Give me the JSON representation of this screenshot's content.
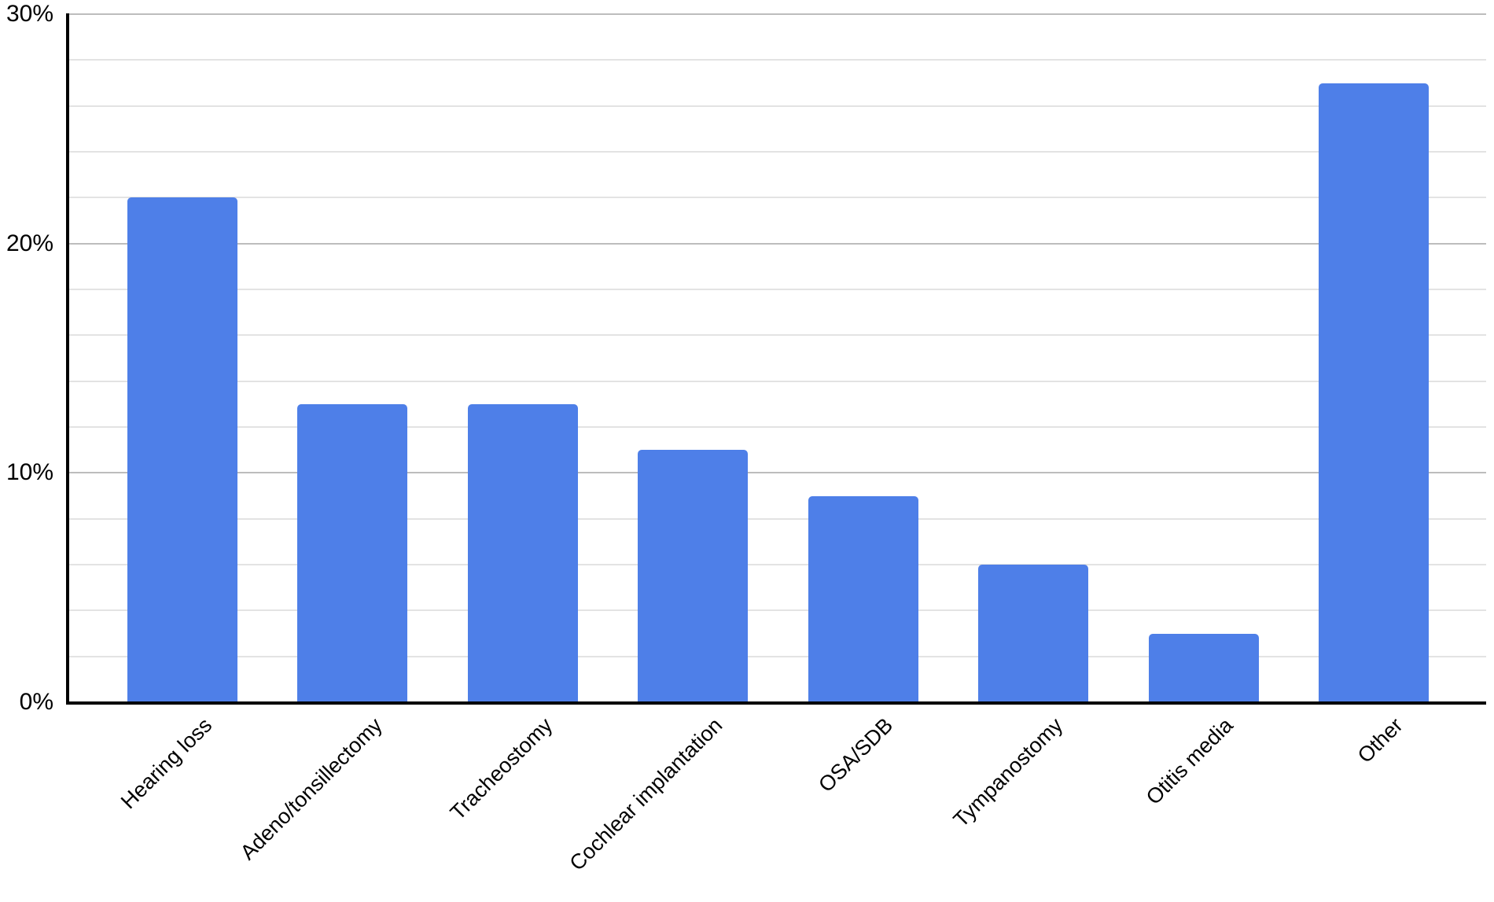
{
  "chart_data": {
    "type": "bar",
    "title": "",
    "xlabel": "",
    "ylabel": "",
    "categories": [
      "Hearing loss",
      "Adeno/tonsillectomy",
      "Tracheostomy",
      "Cochlear implantation",
      "OSA/SDB",
      "Tympanostomy",
      "Otitis media",
      "Other"
    ],
    "values": [
      22,
      13,
      13,
      11,
      9,
      6,
      3,
      27
    ],
    "unit": "%",
    "ylim": [
      0,
      30
    ],
    "yticks": [
      0,
      10,
      20,
      30
    ],
    "ytick_labels": [
      "0%",
      "10%",
      "20%",
      "30%"
    ],
    "minor_gridline_step_pct": 2,
    "major_gridline_step_pct": 10,
    "grid": true,
    "legend": false,
    "x_label_rotation_deg": -45,
    "colors": {
      "bar": "#4e7fe8",
      "axis": "#000000",
      "major_gridline": "#bdbdbd",
      "minor_gridline": "#e3e3e3",
      "label_text": "#000000",
      "background": "#ffffff"
    }
  }
}
